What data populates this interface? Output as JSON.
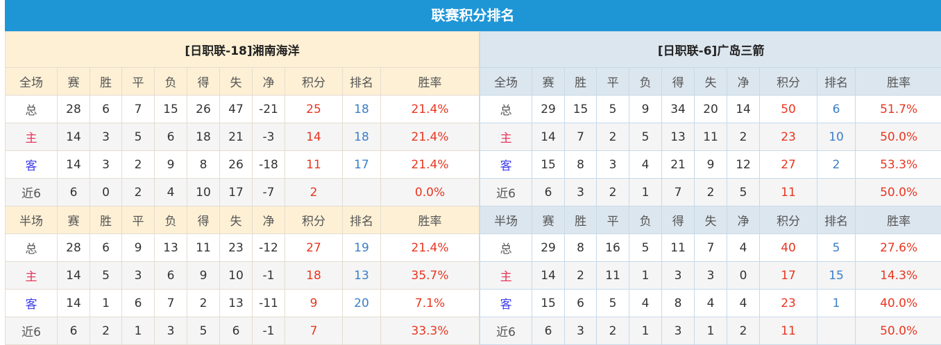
{
  "title": "联赛积分排名",
  "colors": {
    "header": "#1e96d6",
    "points": "#e8351f",
    "rank": "#3a7ec8",
    "home": "#e8355a",
    "away": "#3b3bf0"
  },
  "columns": [
    "赛",
    "胜",
    "平",
    "负",
    "得",
    "失",
    "净",
    "积分",
    "排名",
    "胜率"
  ],
  "teams": [
    {
      "name": "[日职联-18]湘南海洋",
      "sections": [
        {
          "label": "全场",
          "rows": [
            {
              "type": "总",
              "values": [
                "28",
                "6",
                "7",
                "15",
                "26",
                "47",
                "-21",
                "25",
                "18",
                "21.4%"
              ]
            },
            {
              "type": "主",
              "values": [
                "14",
                "3",
                "5",
                "6",
                "18",
                "21",
                "-3",
                "14",
                "18",
                "21.4%"
              ]
            },
            {
              "type": "客",
              "values": [
                "14",
                "3",
                "2",
                "9",
                "8",
                "26",
                "-18",
                "11",
                "17",
                "21.4%"
              ]
            },
            {
              "type": "近6",
              "values": [
                "6",
                "0",
                "2",
                "4",
                "10",
                "17",
                "-7",
                "2",
                "",
                "0.0%"
              ]
            }
          ]
        },
        {
          "label": "半场",
          "rows": [
            {
              "type": "总",
              "values": [
                "28",
                "6",
                "9",
                "13",
                "11",
                "23",
                "-12",
                "27",
                "19",
                "21.4%"
              ]
            },
            {
              "type": "主",
              "values": [
                "14",
                "5",
                "3",
                "6",
                "9",
                "10",
                "-1",
                "18",
                "13",
                "35.7%"
              ]
            },
            {
              "type": "客",
              "values": [
                "14",
                "1",
                "6",
                "7",
                "2",
                "13",
                "-11",
                "9",
                "20",
                "7.1%"
              ]
            },
            {
              "type": "近6",
              "values": [
                "6",
                "2",
                "1",
                "3",
                "5",
                "6",
                "-1",
                "7",
                "",
                "33.3%"
              ]
            }
          ]
        }
      ]
    },
    {
      "name": "[日职联-6]广岛三箭",
      "sections": [
        {
          "label": "全场",
          "rows": [
            {
              "type": "总",
              "values": [
                "29",
                "15",
                "5",
                "9",
                "34",
                "20",
                "14",
                "50",
                "6",
                "51.7%"
              ]
            },
            {
              "type": "主",
              "values": [
                "14",
                "7",
                "2",
                "5",
                "13",
                "11",
                "2",
                "23",
                "10",
                "50.0%"
              ]
            },
            {
              "type": "客",
              "values": [
                "15",
                "8",
                "3",
                "4",
                "21",
                "9",
                "12",
                "27",
                "2",
                "53.3%"
              ]
            },
            {
              "type": "近6",
              "values": [
                "6",
                "3",
                "2",
                "1",
                "7",
                "2",
                "5",
                "11",
                "",
                "50.0%"
              ]
            }
          ]
        },
        {
          "label": "半场",
          "rows": [
            {
              "type": "总",
              "values": [
                "29",
                "8",
                "16",
                "5",
                "11",
                "7",
                "4",
                "40",
                "5",
                "27.6%"
              ]
            },
            {
              "type": "主",
              "values": [
                "14",
                "2",
                "11",
                "1",
                "3",
                "3",
                "0",
                "17",
                "15",
                "14.3%"
              ]
            },
            {
              "type": "客",
              "values": [
                "15",
                "6",
                "5",
                "4",
                "8",
                "4",
                "4",
                "23",
                "1",
                "40.0%"
              ]
            },
            {
              "type": "近6",
              "values": [
                "6",
                "3",
                "2",
                "1",
                "3",
                "1",
                "2",
                "11",
                "",
                "50.0%"
              ]
            }
          ]
        }
      ]
    }
  ]
}
